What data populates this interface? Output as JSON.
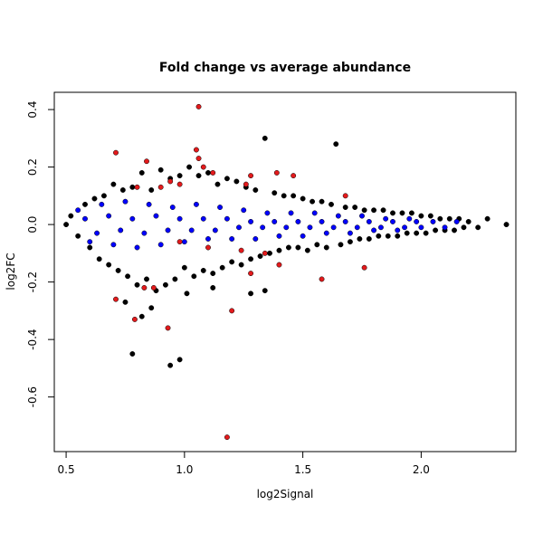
{
  "chart_data": {
    "type": "scatter",
    "title": "Fold change vs average abundance",
    "xlabel": "log2Signal",
    "ylabel": "log2FC",
    "xlim": [
      0.45,
      2.4
    ],
    "ylim": [
      -0.79,
      0.46
    ],
    "x_ticks": [
      "0.5",
      "1.0",
      "1.5",
      "2.0"
    ],
    "y_ticks": [
      "-0.6",
      "-0.4",
      "-0.2",
      "0.0",
      "0.2",
      "0.4"
    ],
    "grid": false,
    "legend": "none",
    "colors": {
      "background": "#ffffff",
      "frame": "#000000",
      "series_black": "#000000",
      "series_blue": "#0000ff",
      "series_red": "#e31a1c"
    },
    "series": [
      {
        "color": "#000000",
        "points": [
          [
            0.5,
            0.0
          ],
          [
            0.52,
            0.03
          ],
          [
            0.55,
            -0.04
          ],
          [
            0.58,
            0.07
          ],
          [
            0.6,
            -0.08
          ],
          [
            0.62,
            0.09
          ],
          [
            0.64,
            -0.12
          ],
          [
            0.66,
            0.1
          ],
          [
            0.68,
            -0.14
          ],
          [
            0.7,
            0.14
          ],
          [
            0.72,
            -0.16
          ],
          [
            0.74,
            0.12
          ],
          [
            0.76,
            -0.18
          ],
          [
            0.78,
            0.13
          ],
          [
            0.8,
            -0.21
          ],
          [
            0.82,
            0.18
          ],
          [
            0.84,
            -0.19
          ],
          [
            0.86,
            0.12
          ],
          [
            0.88,
            -0.23
          ],
          [
            0.9,
            0.19
          ],
          [
            0.92,
            -0.21
          ],
          [
            0.94,
            0.16
          ],
          [
            0.96,
            -0.19
          ],
          [
            0.98,
            0.17
          ],
          [
            1.0,
            -0.15
          ],
          [
            1.02,
            0.2
          ],
          [
            1.04,
            -0.18
          ],
          [
            1.06,
            0.17
          ],
          [
            1.08,
            -0.16
          ],
          [
            1.1,
            0.18
          ],
          [
            1.12,
            -0.17
          ],
          [
            1.14,
            0.14
          ],
          [
            1.16,
            -0.15
          ],
          [
            1.18,
            0.16
          ],
          [
            1.2,
            -0.13
          ],
          [
            1.22,
            0.15
          ],
          [
            1.24,
            -0.14
          ],
          [
            1.26,
            0.13
          ],
          [
            1.28,
            -0.12
          ],
          [
            1.3,
            0.12
          ],
          [
            1.32,
            -0.11
          ],
          [
            1.34,
            0.3
          ],
          [
            1.36,
            -0.1
          ],
          [
            1.38,
            0.11
          ],
          [
            1.4,
            -0.09
          ],
          [
            1.42,
            0.1
          ],
          [
            1.44,
            -0.08
          ],
          [
            1.46,
            0.1
          ],
          [
            1.48,
            -0.08
          ],
          [
            1.5,
            0.09
          ],
          [
            1.52,
            -0.09
          ],
          [
            1.54,
            0.08
          ],
          [
            1.56,
            -0.07
          ],
          [
            1.58,
            0.08
          ],
          [
            1.6,
            -0.08
          ],
          [
            1.62,
            0.07
          ],
          [
            1.64,
            0.28
          ],
          [
            1.66,
            -0.07
          ],
          [
            1.68,
            0.06
          ],
          [
            1.7,
            -0.06
          ],
          [
            1.72,
            0.06
          ],
          [
            1.74,
            -0.05
          ],
          [
            1.76,
            0.05
          ],
          [
            1.78,
            -0.05
          ],
          [
            1.8,
            0.05
          ],
          [
            1.82,
            -0.04
          ],
          [
            1.84,
            0.05
          ],
          [
            1.86,
            -0.04
          ],
          [
            1.88,
            0.04
          ],
          [
            1.9,
            -0.04
          ],
          [
            1.92,
            0.04
          ],
          [
            1.94,
            -0.03
          ],
          [
            1.96,
            0.04
          ],
          [
            1.98,
            -0.03
          ],
          [
            2.0,
            0.03
          ],
          [
            2.02,
            -0.03
          ],
          [
            2.04,
            0.03
          ],
          [
            2.06,
            -0.02
          ],
          [
            2.08,
            0.02
          ],
          [
            2.1,
            -0.02
          ],
          [
            2.12,
            0.02
          ],
          [
            2.14,
            -0.02
          ],
          [
            2.16,
            0.02
          ],
          [
            2.18,
            -0.01
          ],
          [
            2.2,
            0.01
          ],
          [
            2.24,
            -0.01
          ],
          [
            2.28,
            0.02
          ],
          [
            2.36,
            0.0
          ],
          [
            0.78,
            -0.45
          ],
          [
            0.94,
            -0.49
          ],
          [
            0.98,
            -0.47
          ],
          [
            0.82,
            -0.32
          ],
          [
            0.75,
            -0.27
          ],
          [
            0.86,
            -0.29
          ],
          [
            1.01,
            -0.24
          ],
          [
            1.12,
            -0.22
          ],
          [
            1.28,
            -0.24
          ],
          [
            1.34,
            -0.23
          ]
        ]
      },
      {
        "color": "#0000ff",
        "points": [
          [
            0.55,
            0.05
          ],
          [
            0.6,
            -0.06
          ],
          [
            0.65,
            0.07
          ],
          [
            0.7,
            -0.07
          ],
          [
            0.75,
            0.08
          ],
          [
            0.8,
            -0.08
          ],
          [
            0.85,
            0.07
          ],
          [
            0.9,
            -0.07
          ],
          [
            0.95,
            0.06
          ],
          [
            1.0,
            -0.06
          ],
          [
            1.05,
            0.07
          ],
          [
            1.1,
            -0.05
          ],
          [
            1.15,
            0.06
          ],
          [
            1.2,
            -0.05
          ],
          [
            1.25,
            0.05
          ],
          [
            1.3,
            -0.05
          ],
          [
            1.35,
            0.04
          ],
          [
            1.4,
            -0.04
          ],
          [
            1.45,
            0.04
          ],
          [
            1.5,
            -0.04
          ],
          [
            1.55,
            0.04
          ],
          [
            1.6,
            -0.03
          ],
          [
            1.65,
            0.03
          ],
          [
            1.7,
            -0.03
          ],
          [
            1.75,
            0.03
          ],
          [
            1.8,
            -0.02
          ],
          [
            1.85,
            0.02
          ],
          [
            1.9,
            -0.02
          ],
          [
            1.95,
            0.02
          ],
          [
            2.0,
            -0.01
          ],
          [
            2.05,
            0.01
          ],
          [
            2.1,
            -0.01
          ],
          [
            2.15,
            0.01
          ],
          [
            0.58,
            0.02
          ],
          [
            0.63,
            -0.03
          ],
          [
            0.68,
            0.03
          ],
          [
            0.73,
            -0.02
          ],
          [
            0.78,
            0.02
          ],
          [
            0.83,
            -0.03
          ],
          [
            0.88,
            0.03
          ],
          [
            0.93,
            -0.02
          ],
          [
            0.98,
            0.02
          ],
          [
            1.03,
            -0.02
          ],
          [
            1.08,
            0.02
          ],
          [
            1.13,
            -0.02
          ],
          [
            1.18,
            0.02
          ],
          [
            1.23,
            -0.01
          ],
          [
            1.28,
            0.01
          ],
          [
            1.33,
            -0.01
          ],
          [
            1.38,
            0.01
          ],
          [
            1.43,
            -0.01
          ],
          [
            1.48,
            0.01
          ],
          [
            1.53,
            -0.01
          ],
          [
            1.58,
            0.01
          ],
          [
            1.63,
            -0.01
          ],
          [
            1.68,
            0.01
          ],
          [
            1.73,
            -0.01
          ],
          [
            1.78,
            0.01
          ],
          [
            1.83,
            -0.01
          ],
          [
            1.88,
            0.01
          ],
          [
            1.93,
            -0.01
          ],
          [
            1.98,
            0.01
          ]
        ]
      },
      {
        "color": "#e31a1c",
        "points": [
          [
            0.71,
            0.25
          ],
          [
            0.8,
            0.13
          ],
          [
            0.84,
            0.22
          ],
          [
            0.9,
            0.13
          ],
          [
            0.94,
            0.15
          ],
          [
            0.98,
            0.14
          ],
          [
            1.05,
            0.26
          ],
          [
            1.06,
            0.41
          ],
          [
            1.06,
            0.23
          ],
          [
            1.08,
            0.2
          ],
          [
            1.12,
            0.18
          ],
          [
            1.26,
            0.14
          ],
          [
            1.28,
            0.17
          ],
          [
            1.39,
            0.18
          ],
          [
            1.46,
            0.17
          ],
          [
            1.68,
            0.1
          ],
          [
            0.71,
            -0.26
          ],
          [
            0.79,
            -0.33
          ],
          [
            0.83,
            -0.22
          ],
          [
            0.87,
            -0.22
          ],
          [
            0.93,
            -0.36
          ],
          [
            1.2,
            -0.3
          ],
          [
            1.18,
            -0.74
          ],
          [
            1.28,
            -0.17
          ],
          [
            1.4,
            -0.14
          ],
          [
            1.58,
            -0.19
          ],
          [
            1.76,
            -0.15
          ],
          [
            0.98,
            -0.06
          ],
          [
            1.1,
            -0.08
          ],
          [
            1.24,
            -0.09
          ],
          [
            1.34,
            -0.1
          ]
        ]
      }
    ]
  }
}
